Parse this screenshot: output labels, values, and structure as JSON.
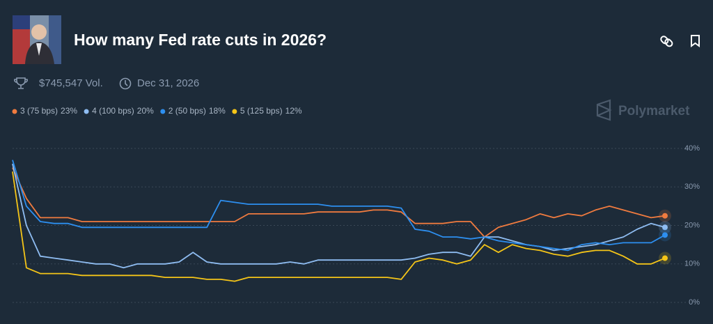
{
  "header": {
    "title": "How many Fed rate cuts in 2026?",
    "volume": "$745,547 Vol.",
    "end_date": "Dec 31, 2026"
  },
  "brand": "Polymarket",
  "chart_data": {
    "type": "line",
    "series": [
      {
        "name": "3 (75 bps)",
        "legend_value": "23%",
        "color": "#f07b3f",
        "values": [
          35,
          27,
          22,
          22,
          22,
          21,
          21,
          21,
          21,
          21,
          21,
          21,
          21,
          21,
          21,
          21,
          21,
          23,
          23,
          23,
          23,
          23,
          23.5,
          23.5,
          23.5,
          23.5,
          24,
          24,
          23.5,
          20.5,
          20.5,
          20.5,
          21,
          21,
          17,
          19.5,
          20.5,
          21.5,
          23,
          22,
          23,
          22.5,
          24,
          25,
          24,
          23,
          22,
          22.5
        ]
      },
      {
        "name": "4 (100 bps)",
        "legend_value": "20%",
        "color": "#8fbdf2",
        "values": [
          36,
          20,
          12,
          11.5,
          11,
          10.5,
          10,
          10,
          9,
          10,
          10,
          10,
          10.5,
          13,
          10.5,
          10,
          10,
          10,
          10,
          10,
          10.5,
          10,
          11,
          11,
          11,
          11,
          11,
          11,
          11,
          11.5,
          12.5,
          13,
          13,
          12,
          17,
          17,
          16,
          15,
          14.5,
          13.5,
          14,
          14.5,
          15,
          16,
          17,
          19,
          20.5,
          19.5
        ]
      },
      {
        "name": "2 (50 bps)",
        "legend_value": "18%",
        "color": "#2d8ff0",
        "values": [
          37,
          25,
          21,
          20.5,
          20.5,
          19.5,
          19.5,
          19.5,
          19.5,
          19.5,
          19.5,
          19.5,
          19.5,
          19.5,
          19.5,
          26.5,
          26,
          25.5,
          25.5,
          25.5,
          25.5,
          25.5,
          25.5,
          25,
          25,
          25,
          25,
          25,
          24.5,
          19,
          18.5,
          17,
          17,
          16.5,
          17,
          16,
          15.5,
          15,
          14.5,
          14,
          13.5,
          15,
          15.5,
          15,
          15.5,
          15.5,
          15.5,
          17.5
        ]
      },
      {
        "name": "5 (125 bps)",
        "legend_value": "12%",
        "color": "#f5c518",
        "values": [
          34,
          9,
          7.5,
          7.5,
          7.5,
          7,
          7,
          7,
          7,
          7,
          7,
          6.5,
          6.5,
          6.5,
          6,
          6,
          5.5,
          6.5,
          6.5,
          6.5,
          6.5,
          6.5,
          6.5,
          6.5,
          6.5,
          6.5,
          6.5,
          6.5,
          6,
          10.5,
          11.5,
          11,
          10,
          11,
          15,
          13,
          15,
          14,
          13.5,
          12.5,
          12,
          13,
          13.5,
          13.5,
          12,
          10,
          10,
          11.5
        ]
      }
    ],
    "ylim": [
      0,
      40
    ],
    "yticks": [
      {
        "value": 0,
        "label": "0%"
      },
      {
        "value": 10,
        "label": "10%"
      },
      {
        "value": 20,
        "label": "20%"
      },
      {
        "value": 30,
        "label": "30%"
      },
      {
        "value": 40,
        "label": "40%"
      }
    ],
    "grid": true
  }
}
